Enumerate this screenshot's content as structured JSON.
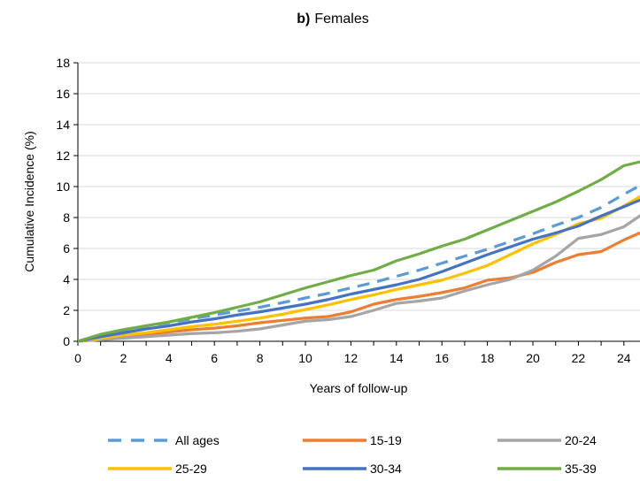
{
  "chart_data": {
    "type": "line",
    "title_prefix": "b)",
    "title": "Females",
    "xlabel": "Years of follow-up",
    "ylabel": "Cumulative Incidence (%)",
    "xlim": [
      0,
      25
    ],
    "ylim": [
      0,
      18
    ],
    "xticks": [
      0,
      2,
      4,
      6,
      8,
      10,
      12,
      14,
      16,
      18,
      20,
      22,
      24
    ],
    "yticks": [
      0,
      2,
      4,
      6,
      8,
      10,
      12,
      14,
      16,
      18
    ],
    "grid": "horizontal",
    "legend_position": "bottom",
    "x": [
      0,
      1,
      2,
      3,
      4,
      5,
      6,
      7,
      8,
      9,
      10,
      11,
      12,
      13,
      14,
      15,
      16,
      17,
      18,
      19,
      20,
      21,
      22,
      23,
      24,
      25
    ],
    "series": [
      {
        "name": "All ages",
        "color": "#5B9BD5",
        "dashed": true,
        "values": [
          0,
          0.4,
          0.7,
          1.0,
          1.2,
          1.45,
          1.7,
          1.95,
          2.2,
          2.5,
          2.8,
          3.1,
          3.45,
          3.8,
          4.2,
          4.6,
          5.05,
          5.5,
          5.95,
          6.45,
          6.95,
          7.5,
          8.0,
          8.65,
          9.5,
          10.3
        ]
      },
      {
        "name": "15-19",
        "color": "#ED7D31",
        "dashed": false,
        "values": [
          0,
          0.15,
          0.3,
          0.45,
          0.6,
          0.75,
          0.85,
          1.0,
          1.2,
          1.35,
          1.5,
          1.6,
          1.9,
          2.4,
          2.7,
          2.9,
          3.15,
          3.45,
          3.95,
          4.1,
          4.45,
          5.1,
          5.6,
          5.8,
          6.55,
          7.2
        ]
      },
      {
        "name": "20-24",
        "color": "#A5A5A5",
        "dashed": false,
        "values": [
          0,
          0.1,
          0.2,
          0.3,
          0.4,
          0.5,
          0.55,
          0.65,
          0.8,
          1.05,
          1.3,
          1.4,
          1.6,
          2.0,
          2.45,
          2.6,
          2.8,
          3.25,
          3.65,
          4.0,
          4.6,
          5.5,
          6.65,
          6.9,
          7.4,
          8.4
        ]
      },
      {
        "name": "25-29",
        "color": "#FFC000",
        "dashed": false,
        "values": [
          0,
          0.2,
          0.4,
          0.55,
          0.75,
          0.95,
          1.1,
          1.3,
          1.5,
          1.75,
          2.05,
          2.35,
          2.7,
          3.0,
          3.35,
          3.65,
          3.95,
          4.4,
          4.9,
          5.6,
          6.3,
          6.9,
          7.6,
          7.95,
          8.75,
          9.6
        ]
      },
      {
        "name": "30-34",
        "color": "#4472C4",
        "dashed": false,
        "values": [
          0,
          0.3,
          0.55,
          0.8,
          1.0,
          1.25,
          1.45,
          1.7,
          1.9,
          2.15,
          2.4,
          2.7,
          3.05,
          3.35,
          3.65,
          4.0,
          4.5,
          5.05,
          5.6,
          6.1,
          6.6,
          7.0,
          7.45,
          8.1,
          8.7,
          9.3
        ]
      },
      {
        "name": "35-39",
        "color": "#70AD47",
        "dashed": false,
        "values": [
          0,
          0.45,
          0.75,
          1.0,
          1.25,
          1.55,
          1.85,
          2.2,
          2.55,
          3.0,
          3.45,
          3.85,
          4.25,
          4.6,
          5.2,
          5.65,
          6.15,
          6.6,
          7.2,
          7.8,
          8.4,
          9.0,
          9.7,
          10.45,
          11.35,
          11.7
        ]
      }
    ]
  }
}
